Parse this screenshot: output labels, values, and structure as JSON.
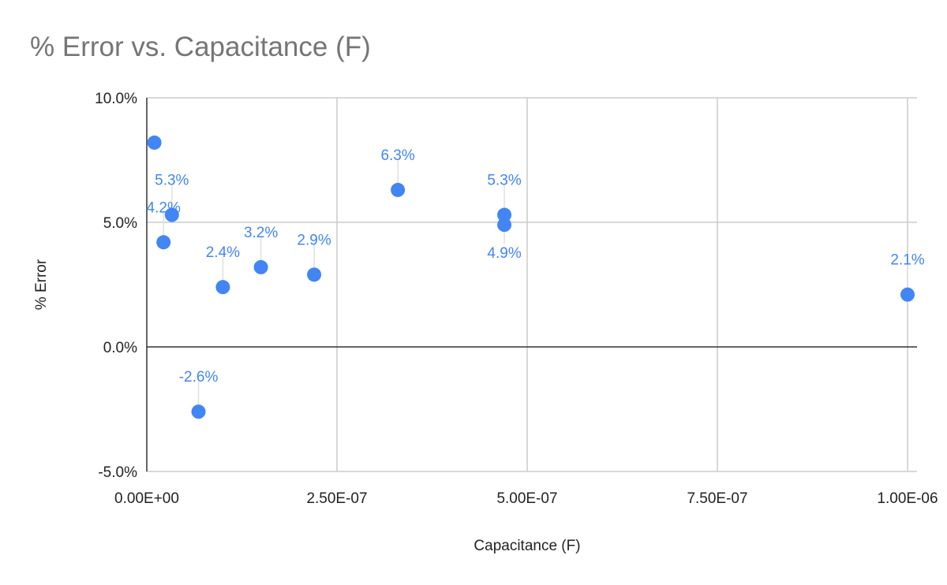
{
  "chart_data": {
    "type": "scatter",
    "title": "% Error vs. Capacitance (F)",
    "xlabel": "Capacitance (F)",
    "ylabel": "% Error",
    "xlim": [
      0,
      1e-06
    ],
    "ylim": [
      -5,
      10
    ],
    "xticks": [
      "0.00E+00",
      "2.50E-07",
      "5.00E-07",
      "7.50E-07",
      "1.00E-06"
    ],
    "xtick_values": [
      0,
      2.5e-07,
      5e-07,
      7.5e-07,
      1e-06
    ],
    "yticks": [
      "-5.0%",
      "0.0%",
      "5.0%",
      "10.0%"
    ],
    "ytick_values": [
      -5,
      0,
      5,
      10
    ],
    "grid": true,
    "color": "#4285f4",
    "points": [
      {
        "x": 1e-08,
        "y": 8.2,
        "label": ""
      },
      {
        "x": 3.3e-08,
        "y": 5.3,
        "label": "5.3%"
      },
      {
        "x": 2.2e-08,
        "y": 4.2,
        "label": "4.2%"
      },
      {
        "x": 6.8e-08,
        "y": -2.6,
        "label": "-2.6%"
      },
      {
        "x": 1e-07,
        "y": 2.4,
        "label": "2.4%"
      },
      {
        "x": 1.5e-07,
        "y": 3.2,
        "label": "3.2%"
      },
      {
        "x": 2.2e-07,
        "y": 2.9,
        "label": "2.9%"
      },
      {
        "x": 3.3e-07,
        "y": 6.3,
        "label": "6.3%"
      },
      {
        "x": 4.7e-07,
        "y": 5.3,
        "label": "5.3%"
      },
      {
        "x": 4.7e-07,
        "y": 4.9,
        "label": "4.9%"
      },
      {
        "x": 1e-06,
        "y": 2.1,
        "label": "2.1%"
      }
    ]
  }
}
